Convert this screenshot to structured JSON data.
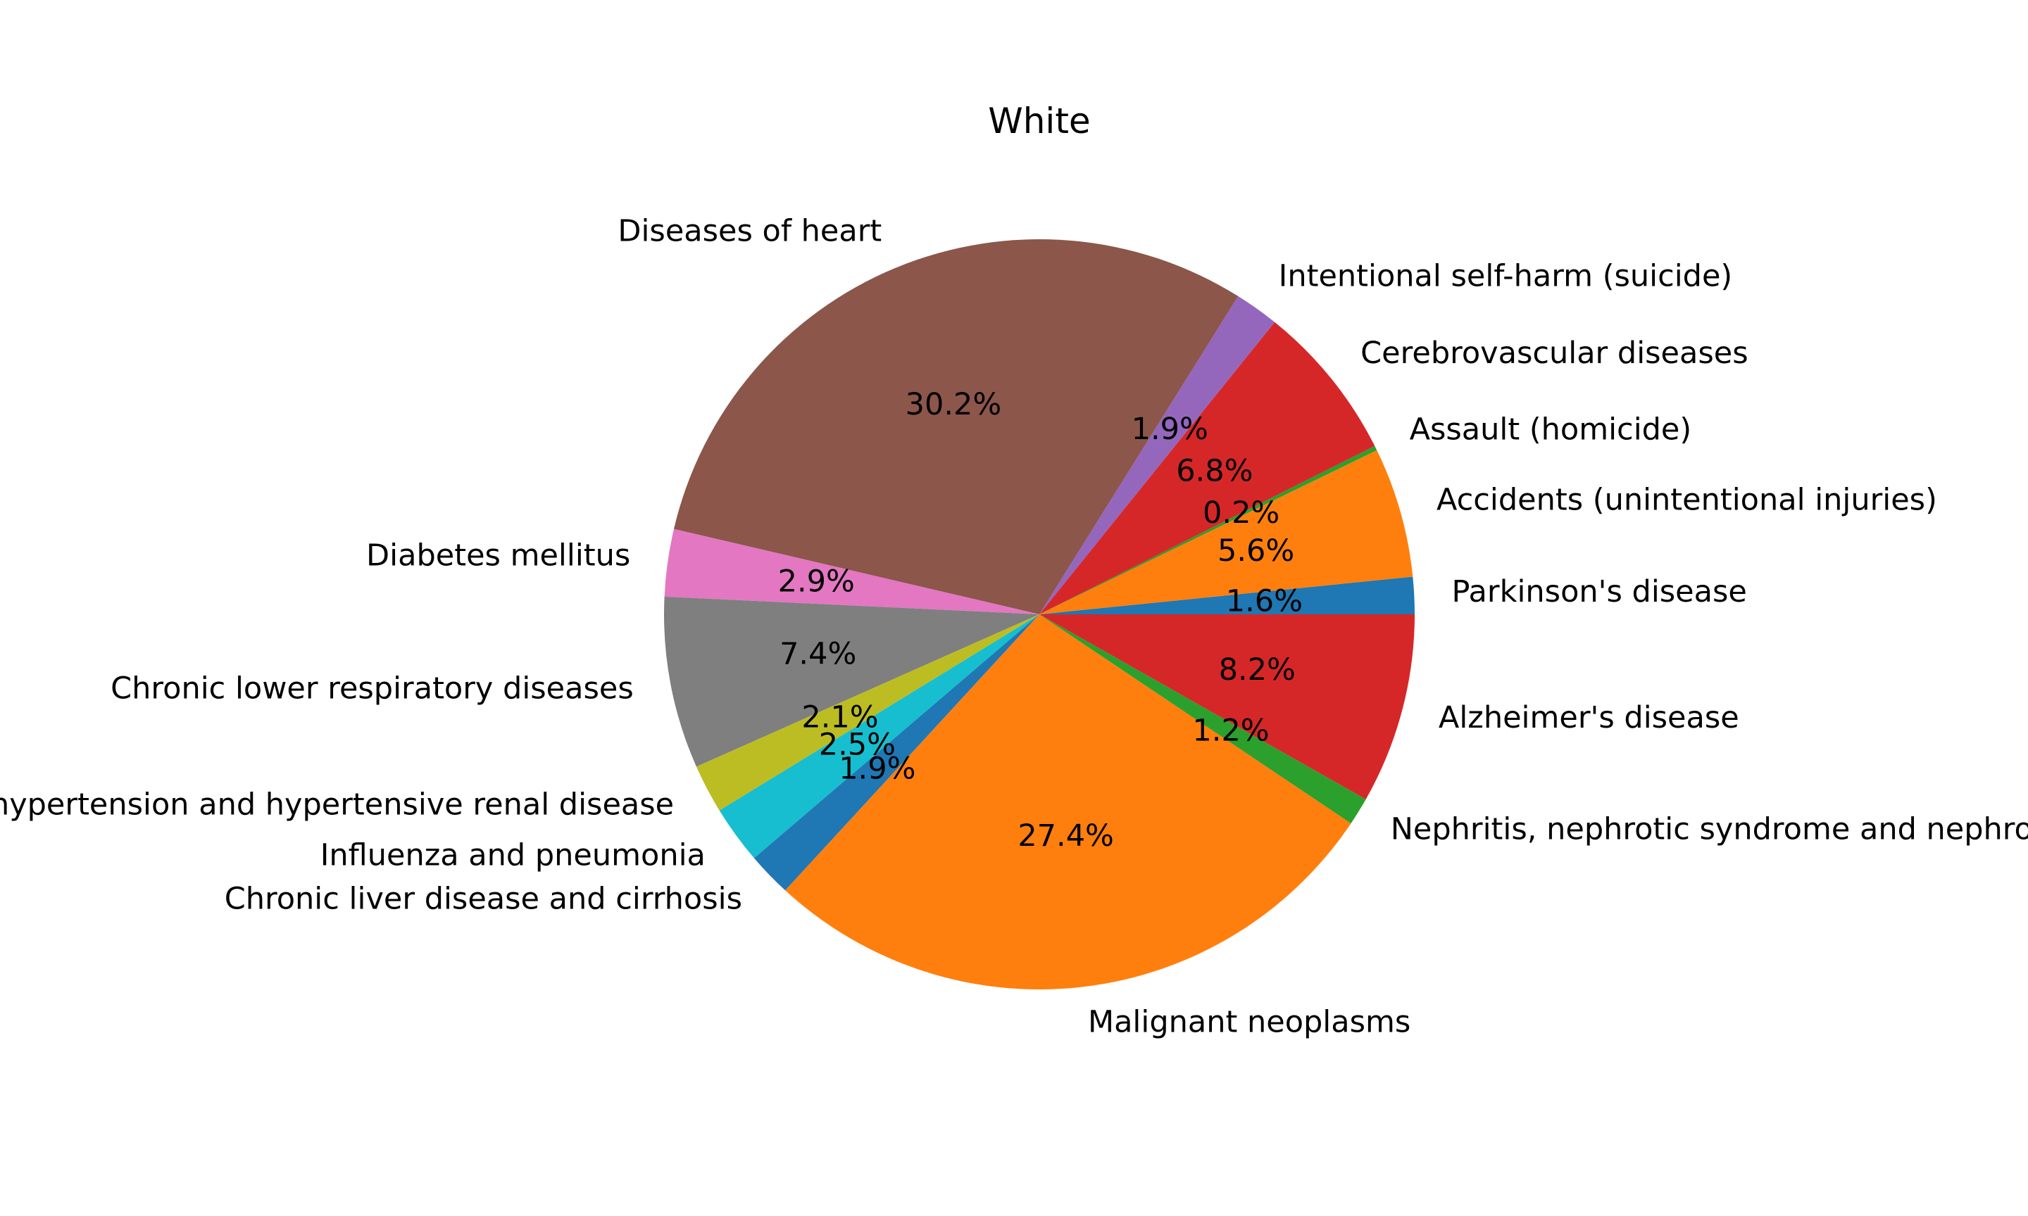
{
  "chart_data": {
    "type": "pie",
    "title": "White",
    "start_angle_deg": 0,
    "direction": "counterclockwise",
    "slices": [
      {
        "label": "Parkinson's disease",
        "value": 1.6,
        "pct_label": "1.6%",
        "color": "#1f77b4"
      },
      {
        "label": "Accidents (unintentional injuries)",
        "value": 5.6,
        "pct_label": "5.6%",
        "color": "#ff7f0e"
      },
      {
        "label": "Assault (homicide)",
        "value": 0.2,
        "pct_label": "0.2%",
        "color": "#2ca02c"
      },
      {
        "label": "Cerebrovascular diseases",
        "value": 6.8,
        "pct_label": "6.8%",
        "color": "#d62728"
      },
      {
        "label": "Intentional self-harm (suicide)",
        "value": 1.9,
        "pct_label": "1.9%",
        "color": "#9467bd"
      },
      {
        "label": "Diseases of heart",
        "value": 30.2,
        "pct_label": "30.2%",
        "color": "#8c564b"
      },
      {
        "label": "Diabetes mellitus",
        "value": 2.9,
        "pct_label": "2.9%",
        "color": "#e377c2"
      },
      {
        "label": "Chronic lower respiratory diseases",
        "value": 7.4,
        "pct_label": "7.4%",
        "color": "#7f7f7f"
      },
      {
        "label": "Essential hypertension and hypertensive renal disease",
        "value": 2.1,
        "pct_label": "2.1%",
        "color": "#bcbd22"
      },
      {
        "label": "Influenza and pneumonia",
        "value": 2.5,
        "pct_label": "2.5%",
        "color": "#17becf"
      },
      {
        "label": "Chronic liver disease and cirrhosis",
        "value": 1.9,
        "pct_label": "1.9%",
        "color": "#1f77b4"
      },
      {
        "label": "Malignant neoplasms",
        "value": 27.4,
        "pct_label": "27.4%",
        "color": "#ff7f0e"
      },
      {
        "label": "Nephritis, nephrotic syndrome and nephrosis",
        "value": 1.2,
        "pct_label": "1.2%",
        "color": "#2ca02c"
      },
      {
        "label": "Alzheimer's disease",
        "value": 8.2,
        "pct_label": "8.2%",
        "color": "#d62728"
      }
    ]
  }
}
